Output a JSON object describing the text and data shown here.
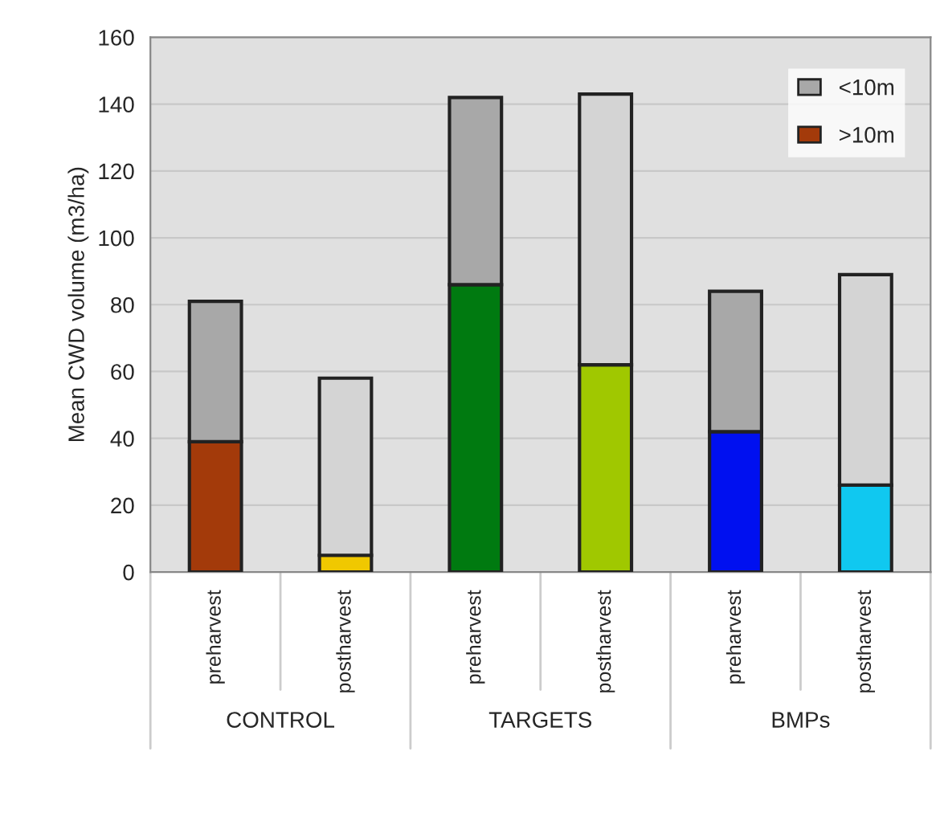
{
  "chart_data": {
    "type": "bar",
    "stacked": true,
    "ylabel": "Mean CWD volume (m3/ha)",
    "categories": [
      "preharvest",
      "postharvest",
      "preharvest",
      "postharvest",
      "preharvest",
      "postharvest"
    ],
    "series": [
      {
        "name": ">10m",
        "color": "#a33a0a",
        "colors": [
          "#a33a0a",
          "#f0c800",
          "#007a10",
          "#a0c800",
          "#0010f0",
          "#10c8f0"
        ],
        "values": [
          39,
          5,
          86,
          62,
          42,
          26
        ]
      },
      {
        "name": "<10m",
        "color": "#a8a8a8",
        "colors": [
          "#a8a8a8",
          "#d4d4d4",
          "#a8a8a8",
          "#d4d4d4",
          "#a8a8a8",
          "#d4d4d4"
        ],
        "values": [
          42,
          53,
          56,
          81,
          42,
          63
        ]
      }
    ],
    "annotations": [
      "CONTROL",
      "TARGETS",
      "BMPs"
    ],
    "ylim": [
      0,
      160
    ],
    "yticks": [
      0,
      20,
      40,
      60,
      80,
      100,
      120,
      140,
      160
    ],
    "grid": "y",
    "legend": "top right"
  }
}
